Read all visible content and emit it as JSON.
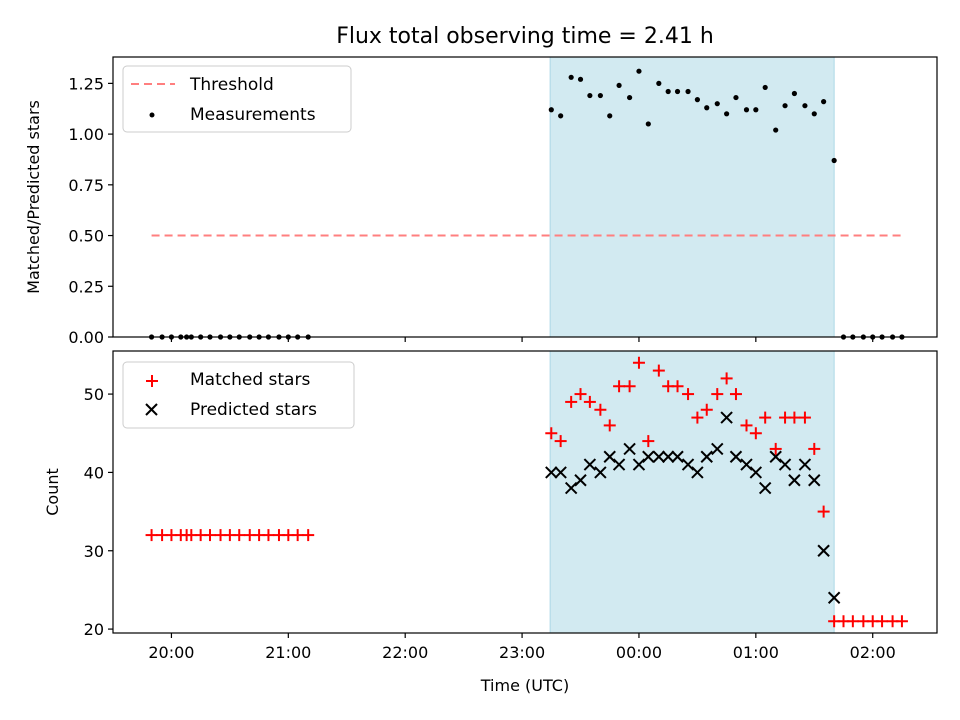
{
  "chart_data": [
    {
      "type": "scatter",
      "title": "Flux total observing time = 2.41 h",
      "xlabel": "",
      "ylabel": "Matched/Predicted stars",
      "ylim": [
        0,
        1.38
      ],
      "yticks": [
        0.0,
        0.25,
        0.5,
        0.75,
        1.0,
        1.25
      ],
      "ytick_labels": [
        "0.00",
        "0.25",
        "0.50",
        "0.75",
        "1.00",
        "1.25"
      ],
      "xlim_hours": [
        19.5,
        26.55
      ],
      "xticks_hours": [
        20,
        21,
        22,
        23,
        24,
        25,
        26
      ],
      "xtick_labels": [
        "",
        "",
        "",
        "",
        "",
        "",
        ""
      ],
      "shaded_region_hours": [
        23.24,
        25.67
      ],
      "shade_color": "#add8e6",
      "legend_position": "upper left",
      "legend": [
        {
          "label": "Threshold",
          "style": "dashed-line",
          "color": "#ff7f7f"
        },
        {
          "label": "Measurements",
          "style": "dot",
          "color": "#000000"
        }
      ],
      "threshold": {
        "label": "Threshold",
        "y": 0.5,
        "x_range_hours": [
          19.83,
          26.25
        ],
        "color": "#ff7f7f"
      },
      "series": [
        {
          "name": "Measurements",
          "marker": "dot",
          "color": "#000000",
          "x_hours": [
            19.83,
            19.92,
            20.0,
            20.08,
            20.13,
            20.17,
            20.25,
            20.33,
            20.42,
            20.5,
            20.58,
            20.67,
            20.75,
            20.83,
            20.92,
            21.0,
            21.08,
            21.17,
            23.25,
            23.33,
            23.42,
            23.5,
            23.58,
            23.67,
            23.75,
            23.83,
            23.92,
            24.0,
            24.08,
            24.17,
            24.25,
            24.33,
            24.42,
            24.5,
            24.58,
            24.67,
            24.75,
            24.83,
            24.92,
            25.0,
            25.08,
            25.17,
            25.25,
            25.33,
            25.42,
            25.5,
            25.58,
            25.67,
            25.75,
            25.83,
            25.92,
            26.0,
            26.08,
            26.17,
            26.25
          ],
          "y": [
            0,
            0,
            0,
            0,
            0,
            0,
            0,
            0,
            0,
            0,
            0,
            0,
            0,
            0,
            0,
            0,
            0,
            0,
            1.12,
            1.09,
            1.28,
            1.27,
            1.19,
            1.19,
            1.09,
            1.24,
            1.18,
            1.31,
            1.05,
            1.25,
            1.21,
            1.21,
            1.21,
            1.17,
            1.13,
            1.15,
            1.1,
            1.18,
            1.12,
            1.12,
            1.23,
            1.02,
            1.14,
            1.2,
            1.14,
            1.1,
            1.16,
            0.87,
            0,
            0,
            0,
            0,
            0,
            0,
            0
          ]
        }
      ]
    },
    {
      "type": "scatter",
      "title": "",
      "xlabel": "Time (UTC)",
      "ylabel": "Count",
      "ylim": [
        19.5,
        55.5
      ],
      "yticks": [
        20,
        30,
        40,
        50
      ],
      "ytick_labels": [
        "20",
        "30",
        "40",
        "50"
      ],
      "xlim_hours": [
        19.5,
        26.55
      ],
      "xticks_hours": [
        20,
        21,
        22,
        23,
        24,
        25,
        26
      ],
      "xtick_labels": [
        "20:00",
        "21:00",
        "22:00",
        "23:00",
        "00:00",
        "01:00",
        "02:00"
      ],
      "shaded_region_hours": [
        23.24,
        25.67
      ],
      "shade_color": "#add8e6",
      "legend_position": "upper left",
      "legend": [
        {
          "label": "Matched stars",
          "style": "plus",
          "color": "#ff0000"
        },
        {
          "label": "Predicted stars",
          "style": "x",
          "color": "#000000"
        }
      ],
      "series": [
        {
          "name": "Matched stars",
          "marker": "plus",
          "color": "#ff0000",
          "x_hours": [
            19.83,
            19.92,
            20.0,
            20.08,
            20.13,
            20.17,
            20.25,
            20.33,
            20.42,
            20.5,
            20.58,
            20.67,
            20.75,
            20.83,
            20.92,
            21.0,
            21.08,
            21.17,
            23.25,
            23.33,
            23.42,
            23.5,
            23.58,
            23.67,
            23.75,
            23.83,
            23.92,
            24.0,
            24.08,
            24.17,
            24.25,
            24.33,
            24.42,
            24.5,
            24.58,
            24.67,
            24.75,
            24.83,
            24.92,
            25.0,
            25.08,
            25.17,
            25.25,
            25.33,
            25.42,
            25.5,
            25.58,
            25.67,
            25.75,
            25.83,
            25.92,
            26.0,
            26.08,
            26.17,
            26.25
          ],
          "y": [
            32,
            32,
            32,
            32,
            32,
            32,
            32,
            32,
            32,
            32,
            32,
            32,
            32,
            32,
            32,
            32,
            32,
            32,
            45,
            44,
            49,
            50,
            49,
            48,
            46,
            51,
            51,
            54,
            44,
            53,
            51,
            51,
            50,
            47,
            48,
            50,
            52,
            50,
            46,
            45,
            47,
            43,
            47,
            47,
            47,
            43,
            35,
            21,
            21,
            21,
            21,
            21,
            21,
            21,
            21
          ]
        },
        {
          "name": "Predicted stars",
          "marker": "x",
          "color": "#000000",
          "x_hours": [
            23.25,
            23.33,
            23.42,
            23.5,
            23.58,
            23.67,
            23.75,
            23.83,
            23.92,
            24.0,
            24.08,
            24.17,
            24.25,
            24.33,
            24.42,
            24.5,
            24.58,
            24.67,
            24.75,
            24.83,
            24.92,
            25.0,
            25.08,
            25.17,
            25.25,
            25.33,
            25.42,
            25.5,
            25.58,
            25.67
          ],
          "y": [
            40,
            40,
            38,
            39,
            41,
            40,
            42,
            41,
            43,
            41,
            42,
            42,
            42,
            42,
            41,
            40,
            42,
            43,
            47,
            42,
            41,
            40,
            38,
            42,
            41,
            39,
            41,
            39,
            30,
            24
          ]
        }
      ]
    }
  ]
}
